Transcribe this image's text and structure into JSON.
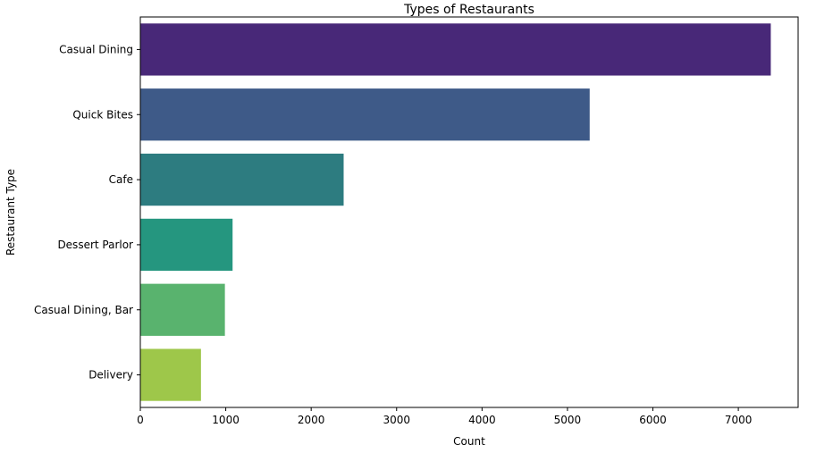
{
  "chart_data": {
    "type": "bar",
    "orientation": "horizontal",
    "title": "Types of Restaurants",
    "xlabel": "Count",
    "ylabel": "Restaurant Type",
    "categories": [
      "Casual Dining",
      "Quick Bites",
      "Cafe",
      "Dessert Parlor",
      "Casual Dining, Bar",
      "Delivery"
    ],
    "values": [
      7380,
      5260,
      2380,
      1080,
      990,
      710
    ],
    "colors": [
      "#482878",
      "#3e5a88",
      "#2d7c80",
      "#25967f",
      "#59b36e",
      "#9ec74a"
    ],
    "xlim": [
      0,
      7700
    ],
    "xticks": [
      0,
      1000,
      2000,
      3000,
      4000,
      5000,
      6000,
      7000
    ],
    "grid": false,
    "legend": "none"
  }
}
